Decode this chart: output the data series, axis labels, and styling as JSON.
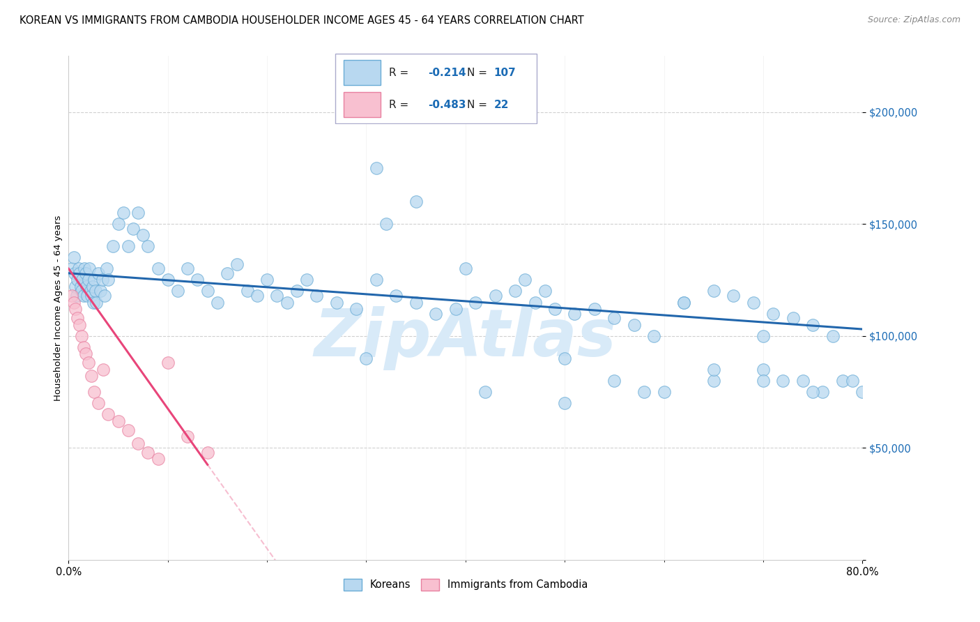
{
  "title": "KOREAN VS IMMIGRANTS FROM CAMBODIA HOUSEHOLDER INCOME AGES 45 - 64 YEARS CORRELATION CHART",
  "source": "Source: ZipAtlas.com",
  "ylabel": "Householder Income Ages 45 - 64 years",
  "watermark": "ZipAtlas",
  "korean_R": -0.214,
  "korean_N": 107,
  "cambodia_R": -0.483,
  "cambodia_N": 22,
  "blue_fill": "#b8d8f0",
  "blue_edge": "#6aacd6",
  "blue_line": "#2166ac",
  "pink_fill": "#f8c0d0",
  "pink_edge": "#e880a0",
  "pink_line": "#e8457a",
  "xlim": [
    0,
    80
  ],
  "ylim": [
    0,
    220000
  ],
  "yticks": [
    0,
    50000,
    100000,
    150000,
    200000
  ],
  "ytick_labels": [
    "",
    "$50,000",
    "$100,000",
    "$150,000",
    "$200,000"
  ],
  "korean_x": [
    0.3,
    0.5,
    0.6,
    0.7,
    0.8,
    0.9,
    1.0,
    1.1,
    1.2,
    1.3,
    1.4,
    1.5,
    1.6,
    1.7,
    1.8,
    1.9,
    2.0,
    2.1,
    2.2,
    2.3,
    2.4,
    2.5,
    2.6,
    2.7,
    2.8,
    3.0,
    3.2,
    3.4,
    3.6,
    3.8,
    4.0,
    4.5,
    5.0,
    5.5,
    6.0,
    6.5,
    7.0,
    7.5,
    8.0,
    9.0,
    10.0,
    11.0,
    12.0,
    13.0,
    14.0,
    15.0,
    16.0,
    17.0,
    18.0,
    19.0,
    20.0,
    21.0,
    22.0,
    23.0,
    24.0,
    25.0,
    27.0,
    29.0,
    31.0,
    33.0,
    35.0,
    37.0,
    39.0,
    41.0,
    43.0,
    45.0,
    47.0,
    49.0,
    51.0,
    53.0,
    55.0,
    57.0,
    59.0,
    62.0,
    65.0,
    67.0,
    69.0,
    71.0,
    73.0,
    75.0,
    77.0,
    31.0,
    35.0,
    40.0,
    46.0,
    50.0,
    55.0,
    60.0,
    65.0,
    70.0,
    72.0,
    74.0,
    76.0,
    30.0,
    42.0,
    50.0,
    58.0,
    65.0,
    70.0,
    75.0,
    78.0,
    80.0,
    32.0,
    48.0,
    62.0,
    70.0,
    79.0
  ],
  "korean_y": [
    130000,
    135000,
    128000,
    122000,
    118000,
    125000,
    130000,
    128000,
    122000,
    120000,
    125000,
    118000,
    130000,
    128000,
    122000,
    118000,
    125000,
    130000,
    120000,
    118000,
    122000,
    115000,
    125000,
    120000,
    115000,
    128000,
    120000,
    125000,
    118000,
    130000,
    125000,
    140000,
    150000,
    155000,
    140000,
    148000,
    155000,
    145000,
    140000,
    130000,
    125000,
    120000,
    130000,
    125000,
    120000,
    115000,
    128000,
    132000,
    120000,
    118000,
    125000,
    118000,
    115000,
    120000,
    125000,
    118000,
    115000,
    112000,
    125000,
    118000,
    115000,
    110000,
    112000,
    115000,
    118000,
    120000,
    115000,
    112000,
    110000,
    112000,
    108000,
    105000,
    100000,
    115000,
    120000,
    118000,
    115000,
    110000,
    108000,
    105000,
    100000,
    175000,
    160000,
    130000,
    125000,
    90000,
    80000,
    75000,
    80000,
    85000,
    80000,
    80000,
    75000,
    90000,
    75000,
    70000,
    75000,
    85000,
    80000,
    75000,
    80000,
    75000,
    150000,
    120000,
    115000,
    100000,
    80000
  ],
  "cambodia_x": [
    0.3,
    0.5,
    0.7,
    0.9,
    1.1,
    1.3,
    1.5,
    1.7,
    2.0,
    2.3,
    2.6,
    3.0,
    3.5,
    4.0,
    5.0,
    6.0,
    7.0,
    8.0,
    9.0,
    10.0,
    12.0,
    14.0
  ],
  "cambodia_y": [
    118000,
    115000,
    112000,
    108000,
    105000,
    100000,
    95000,
    92000,
    88000,
    82000,
    75000,
    70000,
    85000,
    65000,
    62000,
    58000,
    52000,
    48000,
    45000,
    88000,
    55000,
    48000
  ]
}
